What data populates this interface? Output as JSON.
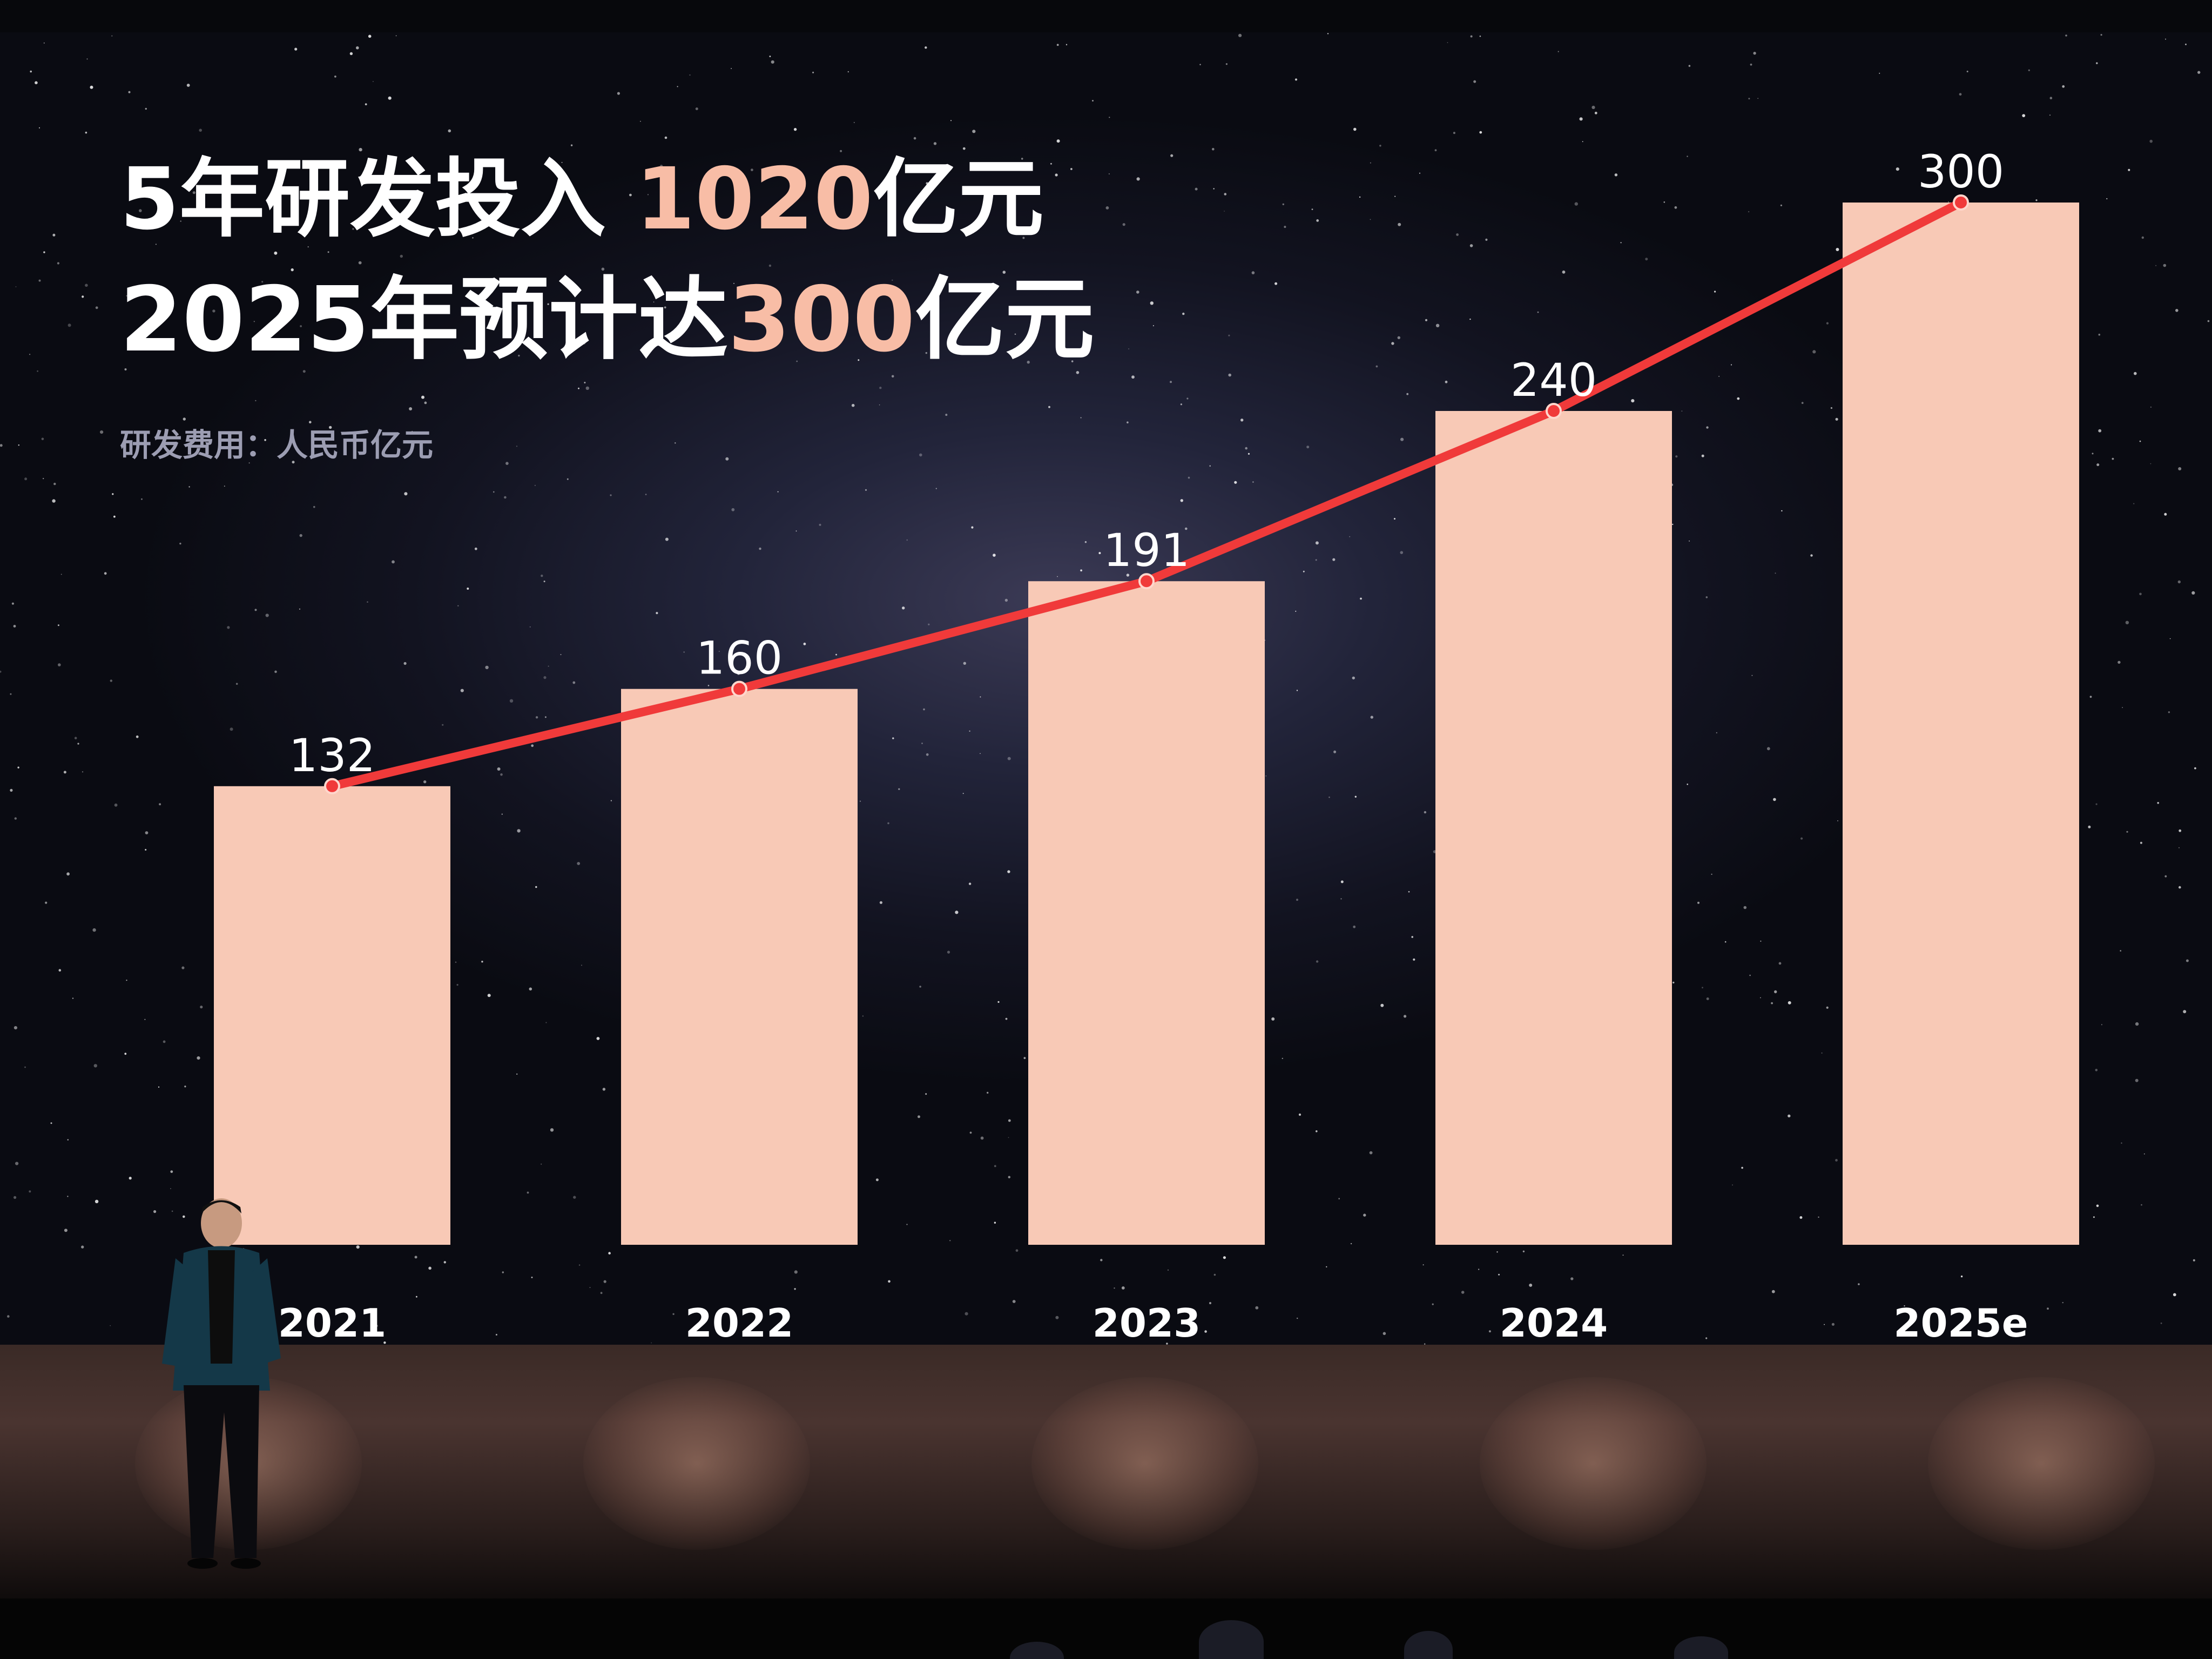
{
  "headline": {
    "line1_prefix": "5年研发投入 ",
    "line1_value": "1020",
    "line1_suffix": "亿元",
    "line2_prefix": "2025年预计达",
    "line2_value": "300",
    "line2_suffix": "亿元"
  },
  "subtitle": "研发费用：人民币亿元",
  "colors": {
    "bar": "#f8c9b6",
    "line": "#f03a3a",
    "accent": "#f8bda6",
    "text": "#ffffff"
  },
  "chart_data": {
    "type": "bar",
    "title": "5年研发投入 1020亿元 2025年预计达300亿元",
    "subtitle": "研发费用：人民币亿元",
    "categories": [
      "2021",
      "2022",
      "2023",
      "2024",
      "2025e"
    ],
    "values": [
      132,
      160,
      191,
      240,
      300
    ],
    "data_labels": [
      "132",
      "160",
      "191",
      "240",
      "300"
    ],
    "overlay_line": true,
    "ylim": [
      0,
      300
    ],
    "grid": false,
    "legend": "none"
  }
}
